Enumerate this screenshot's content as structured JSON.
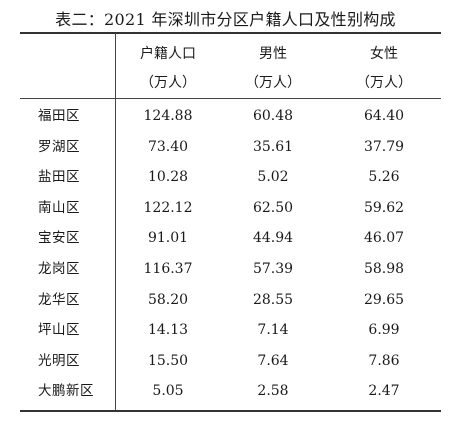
{
  "title": "表二：2021 年深圳市分区户籍人口及性别构成",
  "headers": [
    {
      "label": "户籍人口",
      "unit": "（万人）"
    },
    {
      "label": "男性",
      "unit": "（万人）"
    },
    {
      "label": "女性",
      "unit": "（万人）"
    }
  ],
  "rows": [
    {
      "district": "福田区",
      "total": "124.88",
      "male": "60.48",
      "female": "64.40"
    },
    {
      "district": "罗湖区",
      "total": "73.40",
      "male": "35.61",
      "female": "37.79"
    },
    {
      "district": "盐田区",
      "total": "10.28",
      "male": "5.02",
      "female": "5.26"
    },
    {
      "district": "南山区",
      "total": "122.12",
      "male": "62.50",
      "female": "59.62"
    },
    {
      "district": "宝安区",
      "total": "91.01",
      "male": "44.94",
      "female": "46.07"
    },
    {
      "district": "龙岗区",
      "total": "116.37",
      "male": "57.39",
      "female": "58.98"
    },
    {
      "district": "龙华区",
      "total": "58.20",
      "male": "28.55",
      "female": "29.65"
    },
    {
      "district": "坪山区",
      "total": "14.13",
      "male": "7.14",
      "female": "6.99"
    },
    {
      "district": "光明区",
      "total": "15.50",
      "male": "7.64",
      "female": "7.86"
    },
    {
      "district": "大鹏新区",
      "total": "5.05",
      "male": "2.58",
      "female": "2.47"
    }
  ]
}
